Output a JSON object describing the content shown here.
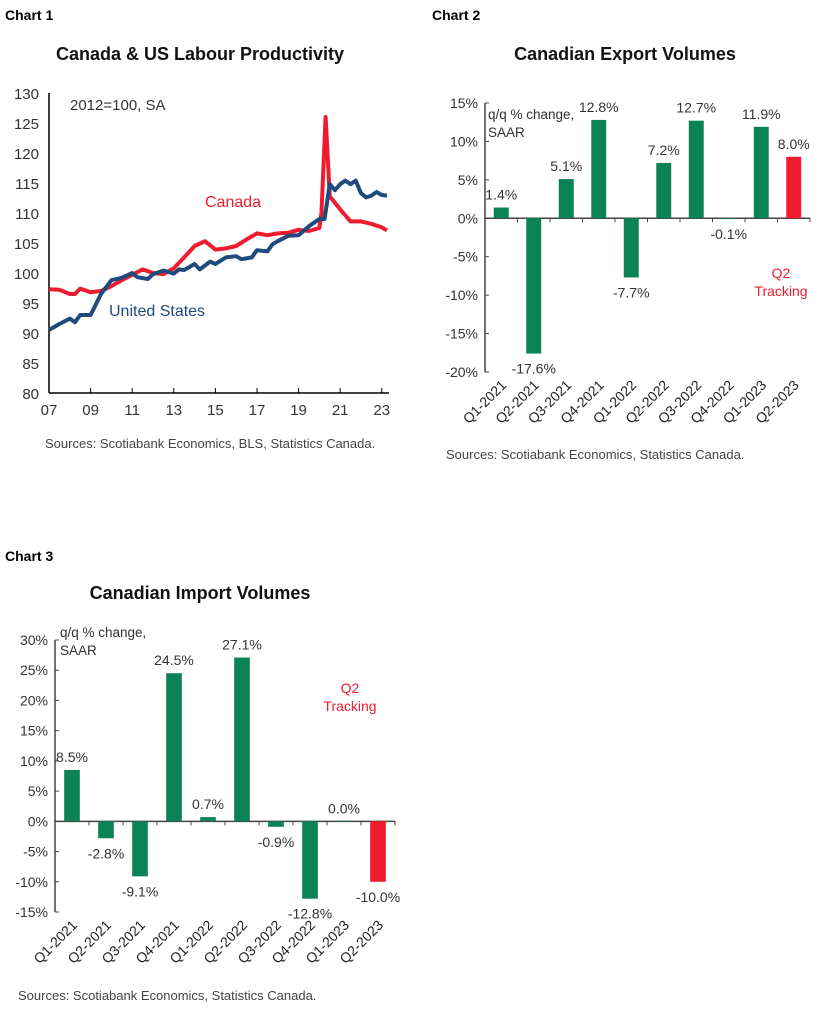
{
  "chart_data": [
    {
      "label": "Chart 1",
      "type": "line",
      "title": "Canada & US Labour Productivity",
      "annotation": "2012=100, SA",
      "ylim": [
        80,
        130
      ],
      "yticks": [
        80,
        85,
        90,
        95,
        100,
        105,
        110,
        115,
        120,
        125,
        130
      ],
      "xlim": [
        2007,
        2023.3
      ],
      "xticks": [
        2007,
        2009,
        2011,
        2013,
        2015,
        2017,
        2019,
        2021,
        2023
      ],
      "xtick_labels": [
        "07",
        "09",
        "11",
        "13",
        "15",
        "17",
        "19",
        "21",
        "23"
      ],
      "source": "Sources: Scotiabank Economics, BLS, Statistics Canada.",
      "series": [
        {
          "name": "Canada",
          "color": "#ee1c2e",
          "x": [
            2007,
            2007.5,
            2008,
            2008.25,
            2008.5,
            2009,
            2009.5,
            2010,
            2010.5,
            2011,
            2011.5,
            2012,
            2012.5,
            2013,
            2013.5,
            2014,
            2014.5,
            2015,
            2015.5,
            2016,
            2016.5,
            2017,
            2017.5,
            2018,
            2018.5,
            2019,
            2019.5,
            2020,
            2020.1,
            2020.3,
            2020.5,
            2021,
            2021.5,
            2022,
            2022.5,
            2023,
            2023.25
          ],
          "y": [
            97.3,
            97.2,
            96.5,
            96.5,
            97.4,
            96.8,
            97.0,
            97.8,
            98.8,
            99.7,
            100.6,
            100.0,
            99.8,
            100.8,
            102.6,
            104.5,
            105.3,
            103.9,
            104.1,
            104.5,
            105.6,
            106.6,
            106.3,
            106.6,
            106.7,
            107.2,
            107.0,
            107.5,
            110,
            126,
            112.8,
            110.6,
            108.6,
            108.6,
            108.2,
            107.6,
            107.1
          ]
        },
        {
          "name": "United States",
          "color": "#1f4a7c",
          "x": [
            2007,
            2007.5,
            2008,
            2008.25,
            2008.5,
            2009,
            2009.5,
            2010,
            2010.5,
            2011,
            2011.25,
            2011.75,
            2012,
            2012.5,
            2013,
            2013.25,
            2013.5,
            2014,
            2014.25,
            2014.75,
            2015,
            2015.5,
            2016,
            2016.25,
            2016.75,
            2017,
            2017.5,
            2017.75,
            2018,
            2018.5,
            2019,
            2019.5,
            2020,
            2020.25,
            2020.5,
            2020.75,
            2021,
            2021.25,
            2021.5,
            2021.75,
            2022,
            2022.25,
            2022.5,
            2022.75,
            2023,
            2023.25
          ],
          "y": [
            90.5,
            91.5,
            92.4,
            91.8,
            93.0,
            93.0,
            96.5,
            98.8,
            99.2,
            100.0,
            99.3,
            99.0,
            99.8,
            100.4,
            99.9,
            100.6,
            100.5,
            101.5,
            100.6,
            101.9,
            101.5,
            102.6,
            102.8,
            102.3,
            102.6,
            103.8,
            103.6,
            104.8,
            105.3,
            106.2,
            106.3,
            107.8,
            109.0,
            109.0,
            114.8,
            113.8,
            114.8,
            115.4,
            114.8,
            115.4,
            113.3,
            112.6,
            112.9,
            113.5,
            113.0,
            112.9
          ]
        }
      ]
    },
    {
      "label": "Chart 2",
      "type": "bar",
      "title": "Canadian Export Volumes",
      "annotation": "q/q % change, SAAR",
      "tracking_note": "Q2 Tracking",
      "categories": [
        "Q1-2021",
        "Q2-2021",
        "Q3-2021",
        "Q4-2021",
        "Q1-2022",
        "Q2-2022",
        "Q3-2022",
        "Q4-2022",
        "Q1-2023",
        "Q2-2023"
      ],
      "values": [
        1.4,
        -17.6,
        5.1,
        12.8,
        -7.7,
        7.2,
        12.7,
        -0.1,
        11.9,
        8.0
      ],
      "value_labels": [
        "1.4%",
        "-17.6%",
        "5.1%",
        "12.8%",
        "-7.7%",
        "7.2%",
        "12.7%",
        "-0.1%",
        "11.9%",
        "8.0%"
      ],
      "ylim": [
        -20,
        15
      ],
      "yticks": [
        15,
        10,
        5,
        0,
        -5,
        -10,
        -15,
        -20
      ],
      "ytick_labels": [
        "15%",
        "10%",
        "5%",
        "0%",
        "-5%",
        "-10%",
        "-15%",
        "-20%"
      ],
      "bar_color": "#0a8256",
      "highlight_color": "#ee1c2e",
      "source": "Sources: Scotiabank Economics, Statistics Canada."
    },
    {
      "label": "Chart 3",
      "type": "bar",
      "title": "Canadian Import Volumes",
      "annotation": "q/q % change, SAAR",
      "tracking_note": "Q2 Tracking",
      "categories": [
        "Q1-2021",
        "Q2-2021",
        "Q3-2021",
        "Q4-2021",
        "Q1-2022",
        "Q2-2022",
        "Q3-2022",
        "Q4-2022",
        "Q1-2023",
        "Q2-2023"
      ],
      "values": [
        8.5,
        -2.8,
        -9.1,
        24.5,
        0.7,
        27.1,
        -0.9,
        -12.8,
        0.0,
        -10.0
      ],
      "value_labels": [
        "8.5%",
        "-2.8%",
        "-9.1%",
        "24.5%",
        "0.7%",
        "27.1%",
        "-0.9%",
        "-12.8%",
        "0.0%",
        "-10.0%"
      ],
      "ylim": [
        -15,
        30
      ],
      "yticks": [
        30,
        25,
        20,
        15,
        10,
        5,
        0,
        -5,
        -10,
        -15
      ],
      "ytick_labels": [
        "30%",
        "25%",
        "20%",
        "15%",
        "10%",
        "5%",
        "0%",
        "-5%",
        "-10%",
        "-15%"
      ],
      "bar_color": "#0a8256",
      "highlight_color": "#ee1c2e",
      "source": "Sources: Scotiabank Economics, Statistics Canada."
    }
  ]
}
